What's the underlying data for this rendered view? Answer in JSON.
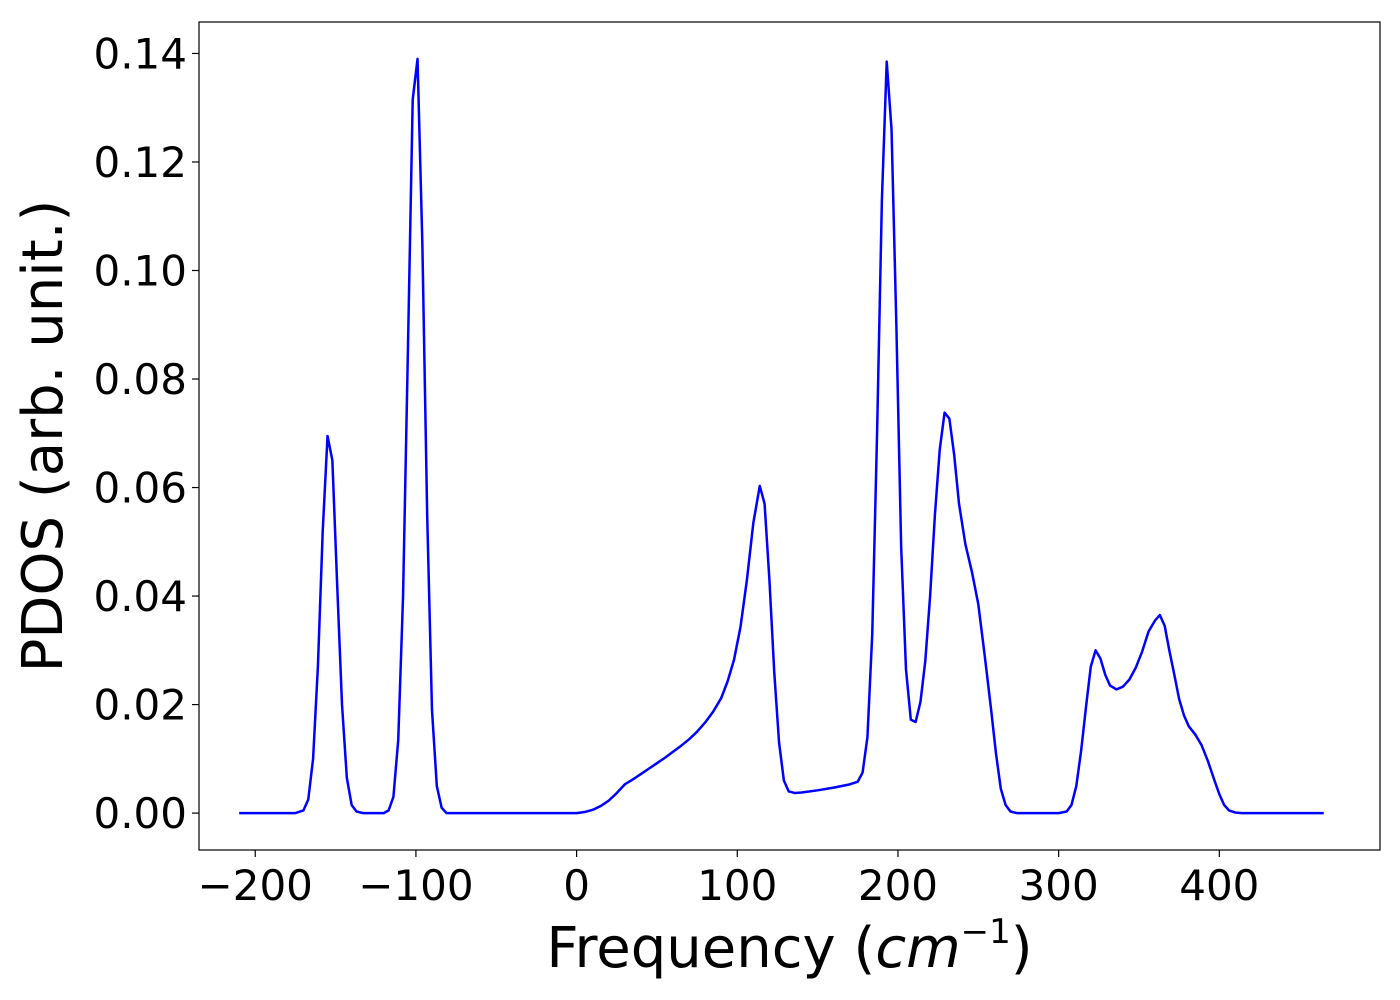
{
  "chart_data": {
    "type": "line",
    "title": "",
    "xlabel_prefix": "Frequency (",
    "xlabel_math": "cm",
    "xlabel_exp": "−1",
    "xlabel_suffix": ")",
    "ylabel": "PDOS (arb. unit.)",
    "xlim": [
      -235,
      500
    ],
    "ylim": [
      -0.0068,
      0.1458
    ],
    "xticks": [
      -200,
      -100,
      0,
      100,
      200,
      300,
      400
    ],
    "xtick_labels": [
      "−200",
      "−100",
      "0",
      "100",
      "200",
      "300",
      "400"
    ],
    "yticks": [
      0.0,
      0.02,
      0.04,
      0.06,
      0.08,
      0.1,
      0.12,
      0.14
    ],
    "ytick_labels": [
      "0.00",
      "0.02",
      "0.04",
      "0.06",
      "0.08",
      "0.10",
      "0.12",
      "0.14"
    ],
    "grid": false,
    "series": [
      {
        "color": "#0000ff",
        "points": [
          [
            -210,
            0.0
          ],
          [
            -175,
            0.0
          ],
          [
            -170,
            0.0005
          ],
          [
            -167,
            0.0025
          ],
          [
            -164,
            0.01
          ],
          [
            -161,
            0.027
          ],
          [
            -158,
            0.052
          ],
          [
            -155,
            0.0695
          ],
          [
            -152,
            0.065
          ],
          [
            -149,
            0.042
          ],
          [
            -146,
            0.02
          ],
          [
            -143,
            0.0065
          ],
          [
            -140,
            0.0015
          ],
          [
            -137,
            0.0003
          ],
          [
            -133,
            0.0
          ],
          [
            -120,
            0.0
          ],
          [
            -117,
            0.0005
          ],
          [
            -114,
            0.003
          ],
          [
            -111,
            0.0135
          ],
          [
            -108,
            0.04
          ],
          [
            -105,
            0.085
          ],
          [
            -102,
            0.1315
          ],
          [
            -99,
            0.139
          ],
          [
            -96,
            0.105
          ],
          [
            -93,
            0.055
          ],
          [
            -90,
            0.019
          ],
          [
            -87,
            0.005
          ],
          [
            -84,
            0.001
          ],
          [
            -81,
            0.0
          ],
          [
            -60,
            0.0
          ],
          [
            0,
            0.0
          ],
          [
            5,
            0.0002
          ],
          [
            10,
            0.0006
          ],
          [
            15,
            0.0013
          ],
          [
            20,
            0.0023
          ],
          [
            25,
            0.0037
          ],
          [
            30,
            0.0053
          ],
          [
            35,
            0.0062
          ],
          [
            40,
            0.0072
          ],
          [
            45,
            0.0082
          ],
          [
            50,
            0.0092
          ],
          [
            55,
            0.0102
          ],
          [
            60,
            0.0113
          ],
          [
            65,
            0.0124
          ],
          [
            70,
            0.0136
          ],
          [
            75,
            0.015
          ],
          [
            80,
            0.0167
          ],
          [
            85,
            0.0187
          ],
          [
            90,
            0.0212
          ],
          [
            94,
            0.0243
          ],
          [
            98,
            0.0283
          ],
          [
            102,
            0.0343
          ],
          [
            106,
            0.043
          ],
          [
            110,
            0.0535
          ],
          [
            114,
            0.0603
          ],
          [
            117,
            0.057
          ],
          [
            120,
            0.043
          ],
          [
            123,
            0.026
          ],
          [
            126,
            0.013
          ],
          [
            129,
            0.006
          ],
          [
            132,
            0.004
          ],
          [
            136,
            0.0037
          ],
          [
            140,
            0.0038
          ],
          [
            150,
            0.0042
          ],
          [
            160,
            0.0047
          ],
          [
            170,
            0.0053
          ],
          [
            175,
            0.0058
          ],
          [
            178,
            0.0075
          ],
          [
            181,
            0.014
          ],
          [
            184,
            0.033
          ],
          [
            187,
            0.07
          ],
          [
            190,
            0.113
          ],
          [
            193,
            0.1385
          ],
          [
            196,
            0.126
          ],
          [
            199,
            0.09
          ],
          [
            202,
            0.049
          ],
          [
            205,
            0.0265
          ],
          [
            208,
            0.0172
          ],
          [
            211,
            0.0168
          ],
          [
            214,
            0.0205
          ],
          [
            217,
            0.028
          ],
          [
            220,
            0.04
          ],
          [
            223,
            0.055
          ],
          [
            226,
            0.067
          ],
          [
            229,
            0.0738
          ],
          [
            232,
            0.0727
          ],
          [
            235,
            0.066
          ],
          [
            238,
            0.057
          ],
          [
            242,
            0.0495
          ],
          [
            246,
            0.0445
          ],
          [
            250,
            0.0385
          ],
          [
            254,
            0.029
          ],
          [
            258,
            0.019
          ],
          [
            261,
            0.011
          ],
          [
            264,
            0.0045
          ],
          [
            267,
            0.0015
          ],
          [
            270,
            0.0003
          ],
          [
            274,
            0.0
          ],
          [
            300,
            0.0
          ],
          [
            305,
            0.0003
          ],
          [
            308,
            0.0015
          ],
          [
            311,
            0.005
          ],
          [
            314,
            0.0115
          ],
          [
            317,
            0.0195
          ],
          [
            320,
            0.027
          ],
          [
            323,
            0.03
          ],
          [
            326,
            0.0285
          ],
          [
            329,
            0.0255
          ],
          [
            332,
            0.0235
          ],
          [
            336,
            0.0228
          ],
          [
            340,
            0.0233
          ],
          [
            344,
            0.0246
          ],
          [
            348,
            0.0268
          ],
          [
            352,
            0.0298
          ],
          [
            356,
            0.0335
          ],
          [
            360,
            0.0355
          ],
          [
            363,
            0.0365
          ],
          [
            366,
            0.0345
          ],
          [
            369,
            0.0298
          ],
          [
            372,
            0.0255
          ],
          [
            375,
            0.021
          ],
          [
            378,
            0.018
          ],
          [
            381,
            0.016
          ],
          [
            385,
            0.0145
          ],
          [
            389,
            0.0125
          ],
          [
            393,
            0.0095
          ],
          [
            397,
            0.006
          ],
          [
            400,
            0.0035
          ],
          [
            403,
            0.0015
          ],
          [
            406,
            0.0005
          ],
          [
            410,
            0.0001
          ],
          [
            414,
            0.0
          ],
          [
            465,
            0.0
          ]
        ]
      }
    ]
  }
}
